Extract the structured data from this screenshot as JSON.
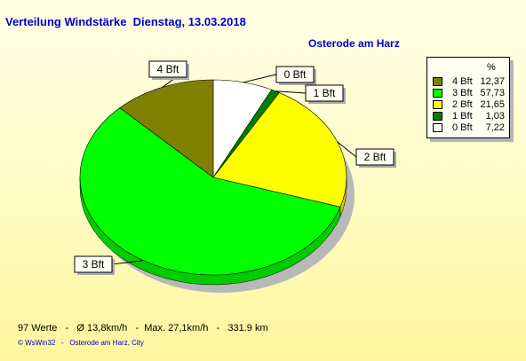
{
  "header": {
    "title": "Verteilung Windstärke  Dienstag, 13.03.2018",
    "location": "Osterode am Harz"
  },
  "chart_data": {
    "type": "pie",
    "title": "Verteilung Windstärke  Dienstag, 13.03.2018",
    "subtitle": "Osterode am Harz",
    "unit": "%",
    "legend_position": "top-right",
    "slices": [
      {
        "label": "4 Bft",
        "value": 12.37,
        "value_text": "12,37",
        "color": "#808000"
      },
      {
        "label": "3 Bft",
        "value": 57.73,
        "value_text": "57,73",
        "color": "#00ff00"
      },
      {
        "label": "2 Bft",
        "value": 21.65,
        "value_text": "21,65",
        "color": "#ffff00"
      },
      {
        "label": "1 Bft",
        "value": 1.03,
        "value_text": "1,03",
        "color": "#008000"
      },
      {
        "label": "0 Bft",
        "value": 7.22,
        "value_text": "7,22",
        "color": "#ffffff"
      }
    ],
    "draw_order": [
      "0 Bft",
      "1 Bft",
      "2 Bft",
      "3 Bft",
      "4 Bft"
    ]
  },
  "footer": {
    "stats": "97 Werte   -   Ø 13,8km/h   -  Max. 27,1km/h   -   331.9 km",
    "credit": "© WsWin32   -   Osterode am Harz, City"
  }
}
